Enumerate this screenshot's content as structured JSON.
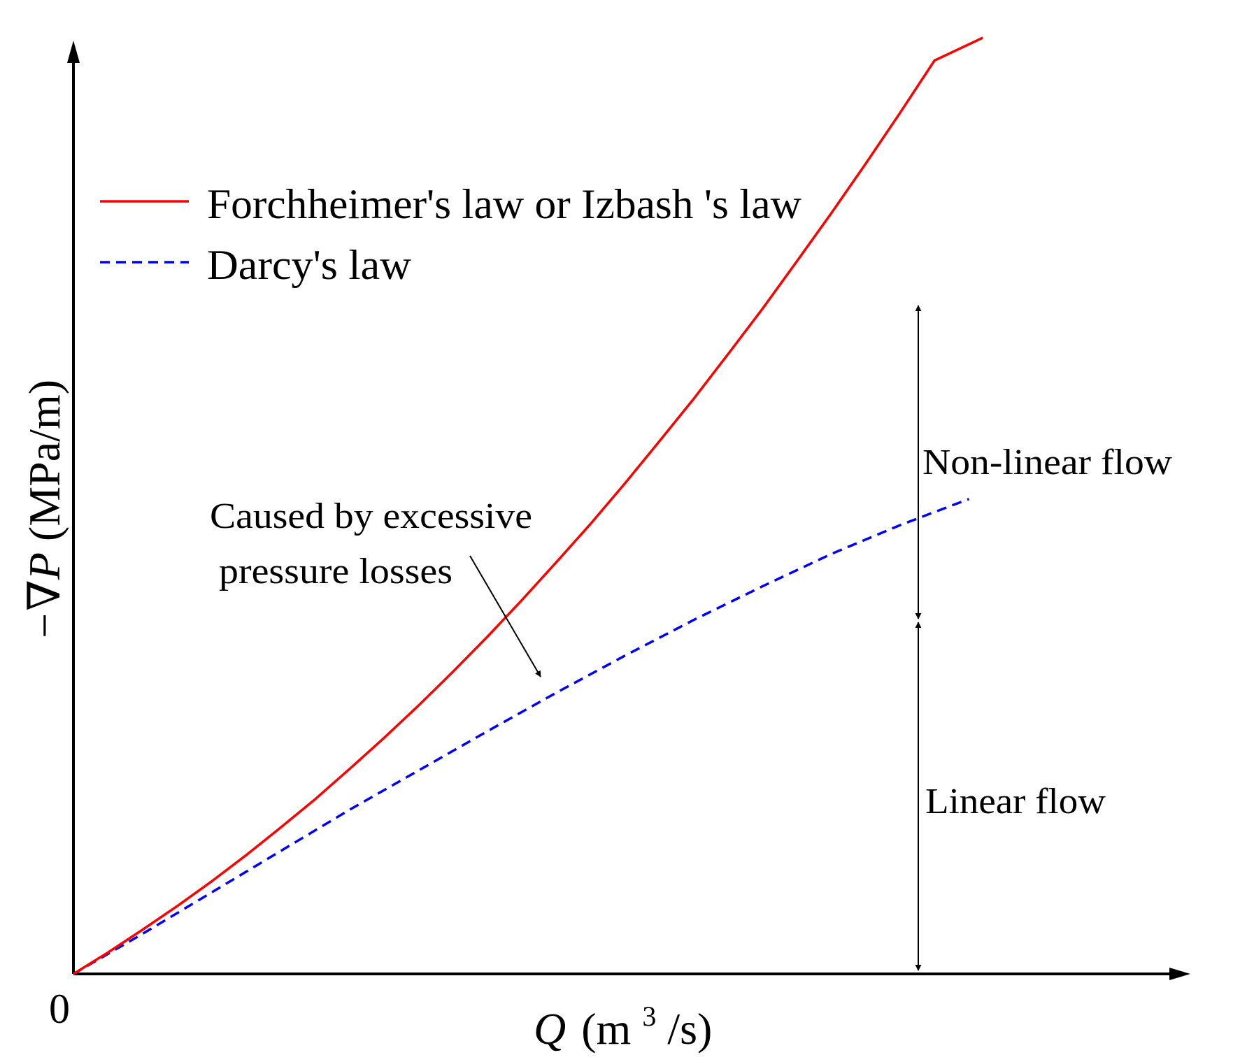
{
  "chart_data": {
    "type": "line",
    "xlabel": {
      "symbol": "Q",
      "unit_prefix": "(m",
      "unit_sup": "3",
      "unit_suffix": "/s)"
    },
    "ylabel": {
      "symbol": "−∇P",
      "unit": "(MPa/m)"
    },
    "origin_label": "0",
    "xlim": [
      0,
      1.33
    ],
    "ylim": [
      0,
      1.36
    ],
    "series": [
      {
        "name": "Forchheimer's law or Izbash 's law",
        "color": "#ff0000",
        "style": "solid",
        "x": [
          0,
          0.05,
          0.1,
          0.15,
          0.2,
          0.25,
          0.3,
          0.35,
          0.4,
          0.45,
          0.5,
          0.55,
          0.6,
          0.65,
          0.7,
          0.75,
          0.8,
          0.85,
          0.9,
          0.95,
          1.0,
          1.05,
          1.1,
          1.15,
          1.2,
          1.25,
          1.32
        ],
        "y": [
          0,
          0.031,
          0.064,
          0.098,
          0.134,
          0.172,
          0.212,
          0.253,
          0.297,
          0.342,
          0.389,
          0.438,
          0.489,
          0.542,
          0.597,
          0.653,
          0.712,
          0.773,
          0.835,
          0.9,
          0.966,
          1.035,
          1.105,
          1.177,
          1.251,
          1.327,
          1.36
        ]
      },
      {
        "name": "Darcy's law",
        "color": "#0000ff",
        "style": "dashed",
        "x": [
          0,
          0.1,
          0.2,
          0.3,
          0.4,
          0.5,
          0.6,
          0.7,
          0.8,
          0.9,
          1.0,
          1.1,
          1.2,
          1.3
        ],
        "y": [
          0,
          0.058,
          0.118,
          0.178,
          0.238,
          0.295,
          0.352,
          0.408,
          0.462,
          0.514,
          0.563,
          0.61,
          0.652,
          0.69
        ]
      }
    ],
    "legend_position": "top-left",
    "grid": false,
    "annotations": {
      "nonlinear": "Non-linear flow",
      "linear": "Linear flow",
      "cause_line1": "Caused by excessive",
      "cause_line2": "pressure losses"
    }
  }
}
